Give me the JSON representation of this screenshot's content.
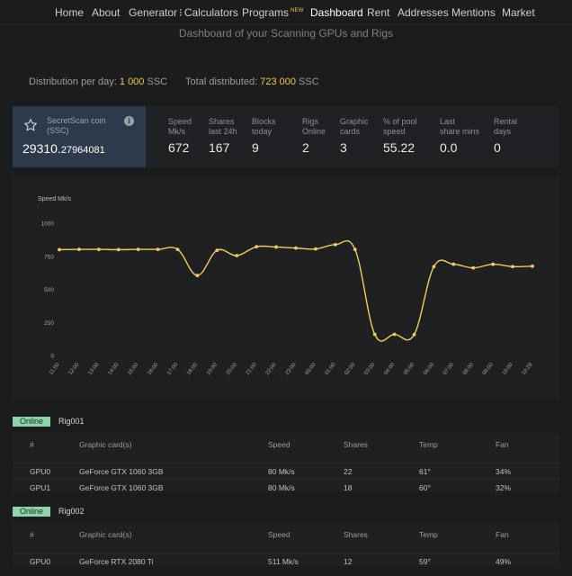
{
  "nav": {
    "items": [
      {
        "label": "Home"
      },
      {
        "label": "About"
      },
      {
        "label": "Generator"
      },
      {
        "label": "Calculators"
      },
      {
        "label": "Programs",
        "badge": "NEW"
      },
      {
        "label": "Dashboard",
        "active": true
      },
      {
        "label": "Rent"
      },
      {
        "label": "Addresses"
      },
      {
        "label": "Mentions"
      },
      {
        "label": "Market"
      }
    ]
  },
  "subtitle": "Dashboard of your Scanning GPUs and Rigs",
  "distribution": {
    "per_day_label": "Distribution per day:",
    "per_day_value": "1 000",
    "per_day_unit": "SSC",
    "total_label": "Total distributed:",
    "total_value": "723 000",
    "total_unit": "SSC"
  },
  "coin": {
    "name": "SecretScan coin (SSC)",
    "balance_int": "29310.",
    "balance_dec": "27964081",
    "info_glyph": "i"
  },
  "stats": [
    {
      "label": "Speed\nMk/s",
      "value": "672"
    },
    {
      "label": "Shares\nlast 24h",
      "value": "167"
    },
    {
      "label": "Blocks\ntoday",
      "value": "9"
    },
    {
      "label": "Rigs\nOnline",
      "value": "2"
    },
    {
      "label": "Graphic\ncards",
      "value": "3"
    },
    {
      "label": "% of pool\nspeed",
      "value": "55.22"
    },
    {
      "label": "Last\nshare mins",
      "value": "0.0"
    },
    {
      "label": "Rental\ndays",
      "value": "0"
    }
  ],
  "chart_data": {
    "type": "line",
    "ylabel": "Speed Mk/s",
    "ylim": [
      0,
      1000
    ],
    "yticks": [
      0,
      250,
      500,
      750,
      1000
    ],
    "grid": false,
    "color": "#f5cc5a",
    "x": [
      "11:00",
      "12:00",
      "13:00",
      "14:00",
      "15:00",
      "16:00",
      "17:00",
      "18:00",
      "19:00",
      "20:00",
      "21:00",
      "22:00",
      "23:00",
      "00:00",
      "01:00",
      "02:00",
      "03:00",
      "04:00",
      "05:00",
      "06:00",
      "07:00",
      "08:00",
      "09:00",
      "10:00",
      "10:29"
    ],
    "values": [
      800,
      802,
      802,
      800,
      802,
      802,
      802,
      605,
      795,
      755,
      822,
      820,
      812,
      805,
      838,
      802,
      160,
      160,
      158,
      672,
      690,
      662,
      690,
      672,
      675
    ]
  },
  "rigs": [
    {
      "status": "Online",
      "name": "Rig001",
      "columns": [
        "#",
        "Graphic card(s)",
        "Speed",
        "Shares",
        "Temp",
        "Fan"
      ],
      "rows": [
        [
          "GPU0",
          "GeForce GTX 1060 3GB",
          "80 Mk/s",
          "22",
          "61°",
          "34%"
        ],
        [
          "GPU1",
          "GeForce GTX 1060 3GB",
          "80 Mk/s",
          "18",
          "60°",
          "32%"
        ]
      ]
    },
    {
      "status": "Online",
      "name": "Rig002",
      "columns": [
        "#",
        "Graphic card(s)",
        "Speed",
        "Shares",
        "Temp",
        "Fan"
      ],
      "rows": [
        [
          "GPU0",
          "GeForce RTX 2080 Ti",
          "511 Mk/s",
          "12",
          "59°",
          "49%"
        ]
      ]
    }
  ]
}
